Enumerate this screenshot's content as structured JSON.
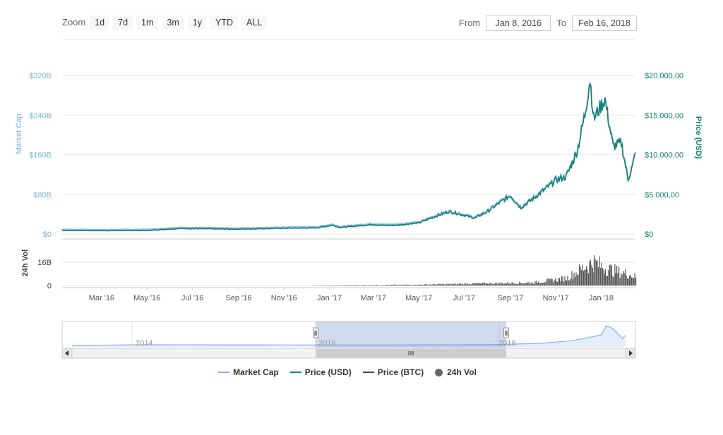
{
  "toolbar": {
    "zoom_label": "Zoom",
    "zoom_buttons": [
      "1d",
      "7d",
      "1m",
      "3m",
      "1y",
      "YTD",
      "ALL"
    ],
    "from_label": "From",
    "from_value": "Jan 8, 2016",
    "to_label": "To",
    "to_value": "Feb 16, 2018"
  },
  "colors": {
    "market_cap": "#7cb5ec",
    "price_usd": "#15806e",
    "price_btc": "#434348",
    "volume": "#555555",
    "navigator_fill": "#d6e2f3"
  },
  "legend": [
    {
      "name": "Market Cap",
      "color": "#7cb5ec",
      "marker": "line"
    },
    {
      "name": "Price (USD)",
      "color": "#15806e",
      "marker": "line"
    },
    {
      "name": "Price (BTC)",
      "color": "#434348",
      "marker": "line"
    },
    {
      "name": "24h Vol",
      "color": "#666666",
      "marker": "dot"
    }
  ],
  "navigator": {
    "year_labels": [
      "2014",
      "2016",
      "2018"
    ]
  },
  "chart_data": {
    "type": "line",
    "title": "",
    "y_left_label": "Market Cap",
    "y_left_ticks": [
      "$0",
      "$80B",
      "$160B",
      "$240B",
      "$320B"
    ],
    "y_left_range": [
      0,
      320
    ],
    "y_right_label": "Price (USD)",
    "y_right_ticks": [
      "$0",
      "$5.000,00",
      "$10.000,00",
      "$15.000,00",
      "$20.000,00"
    ],
    "y_right_range": [
      0,
      20000
    ],
    "volume_label": "24h Vol",
    "volume_ticks": [
      "0",
      "16B"
    ],
    "x_tick_labels": [
      "Mar '16",
      "May '16",
      "Jul '16",
      "Sep '16",
      "Nov '16",
      "Jan '17",
      "Mar '17",
      "May '17",
      "Jul '17",
      "Sep '17",
      "Nov '17",
      "Jan '18"
    ],
    "x_range": [
      "2016-01-08",
      "2018-02-16"
    ],
    "series": [
      {
        "name": "Price (USD)",
        "points": [
          [
            "2016-01-08",
            450
          ],
          [
            "2016-03-01",
            430
          ],
          [
            "2016-05-01",
            450
          ],
          [
            "2016-06-15",
            700
          ],
          [
            "2016-07-01",
            670
          ],
          [
            "2016-09-01",
            610
          ],
          [
            "2016-11-01",
            730
          ],
          [
            "2016-12-15",
            780
          ],
          [
            "2017-01-05",
            1100
          ],
          [
            "2017-01-15",
            820
          ],
          [
            "2017-03-01",
            1200
          ],
          [
            "2017-03-10",
            1100
          ],
          [
            "2017-04-01",
            1100
          ],
          [
            "2017-05-01",
            1400
          ],
          [
            "2017-05-20",
            2100
          ],
          [
            "2017-06-10",
            2800
          ],
          [
            "2017-06-25",
            2500
          ],
          [
            "2017-07-15",
            2000
          ],
          [
            "2017-08-01",
            2800
          ],
          [
            "2017-08-20",
            4100
          ],
          [
            "2017-09-01",
            4800
          ],
          [
            "2017-09-15",
            3300
          ],
          [
            "2017-10-01",
            4400
          ],
          [
            "2017-10-20",
            5800
          ],
          [
            "2017-11-01",
            6800
          ],
          [
            "2017-11-15",
            7200
          ],
          [
            "2017-11-30",
            10500
          ],
          [
            "2017-12-10",
            15000
          ],
          [
            "2017-12-17",
            19500
          ],
          [
            "2017-12-22",
            14500
          ],
          [
            "2018-01-06",
            17000
          ],
          [
            "2018-01-17",
            11000
          ],
          [
            "2018-01-28",
            11500
          ],
          [
            "2018-02-06",
            6900
          ],
          [
            "2018-02-12",
            8500
          ],
          [
            "2018-02-16",
            10200
          ]
        ]
      },
      {
        "name": "Market Cap",
        "points": [
          [
            "2016-01-08",
            7
          ],
          [
            "2016-06-15",
            11
          ],
          [
            "2016-12-15",
            13
          ],
          [
            "2017-05-20",
            34
          ],
          [
            "2017-09-01",
            80
          ],
          [
            "2017-11-30",
            175
          ],
          [
            "2017-12-17",
            327
          ],
          [
            "2018-01-06",
            285
          ],
          [
            "2018-02-06",
            116
          ],
          [
            "2018-02-16",
            172
          ]
        ]
      },
      {
        "name": "24h Vol",
        "points": [
          [
            "2016-01-08",
            0.05
          ],
          [
            "2016-12-01",
            0.1
          ],
          [
            "2017-05-01",
            0.6
          ],
          [
            "2017-08-01",
            1.5
          ],
          [
            "2017-10-01",
            2
          ],
          [
            "2017-11-15",
            5
          ],
          [
            "2017-12-10",
            13
          ],
          [
            "2017-12-22",
            16
          ],
          [
            "2018-01-06",
            12
          ],
          [
            "2018-01-20",
            10
          ],
          [
            "2018-02-06",
            8
          ],
          [
            "2018-02-16",
            6
          ]
        ]
      }
    ]
  }
}
